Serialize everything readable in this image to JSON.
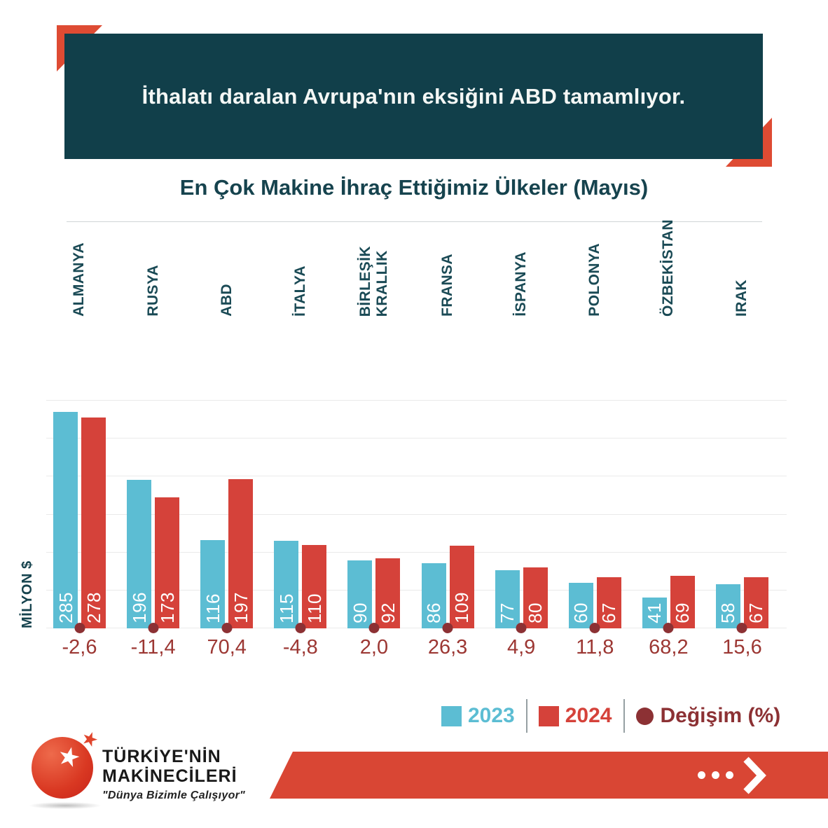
{
  "header": {
    "title": "İthalatı daralan Avrupa'nın eksiğini ABD tamamlıyor."
  },
  "chart": {
    "subtitle": "En Çok Makine İhraç Ettiğimiz Ülkeler (Mayıs)",
    "ylabel": "MİLYON $",
    "legend": {
      "y2023": "2023",
      "y2024": "2024",
      "change": "Değişim (%)"
    }
  },
  "chart_data": {
    "type": "bar",
    "title": "En Çok Makine İhraç Ettiğimiz Ülkeler (Mayıs)",
    "ylabel": "MİLYON $",
    "ylim": [
      0,
      300
    ],
    "y_gridlines": [
      0,
      50,
      100,
      150,
      200,
      250,
      300
    ],
    "grid": true,
    "legend_position": "bottom-right",
    "categories": [
      "ALMANYA",
      "RUSYA",
      "ABD",
      "İTALYA",
      "BİRLEŞİK KRALLIK",
      "FRANSA",
      "İSPANYA",
      "POLONYA",
      "ÖZBEKİSTAN",
      "IRAK"
    ],
    "category_lines": [
      [
        "ALMANYA"
      ],
      [
        "RUSYA"
      ],
      [
        "ABD"
      ],
      [
        "İTALYA"
      ],
      [
        "BİRLEŞİK",
        "KRALLIK"
      ],
      [
        "FRANSA"
      ],
      [
        "İSPANYA"
      ],
      [
        "POLONYA"
      ],
      [
        "ÖZBEKİSTAN"
      ],
      [
        "IRAK"
      ]
    ],
    "series": [
      {
        "name": "2023",
        "color": "#5cbdd3",
        "values": [
          285,
          196,
          116,
          115,
          90,
          86,
          77,
          60,
          41,
          58
        ]
      },
      {
        "name": "2024",
        "color": "#d5423a",
        "values": [
          278,
          173,
          197,
          110,
          92,
          109,
          80,
          67,
          69,
          67
        ]
      }
    ],
    "change_percent": [
      "-2,6",
      "-11,4",
      "70,4",
      "-4,8",
      "2,0",
      "26,3",
      "4,9",
      "11,8",
      "68,2",
      "15,6"
    ]
  },
  "footer": {
    "brand_line1": "TÜRKİYE'NİN",
    "brand_line2": "MAKİNECİLERİ",
    "slogan": "\"Dünya Bizimle Çalışıyor\""
  },
  "colors": {
    "header_bg": "#113f4a",
    "accent_red": "#de4b33",
    "banner_red": "#d94634",
    "bar_2023": "#5cbdd3",
    "bar_2024": "#d5423a",
    "change_dot": "#8c3134",
    "change_text": "#9c3733",
    "teal_text": "#16434e",
    "gridline": "#eaeaea"
  }
}
